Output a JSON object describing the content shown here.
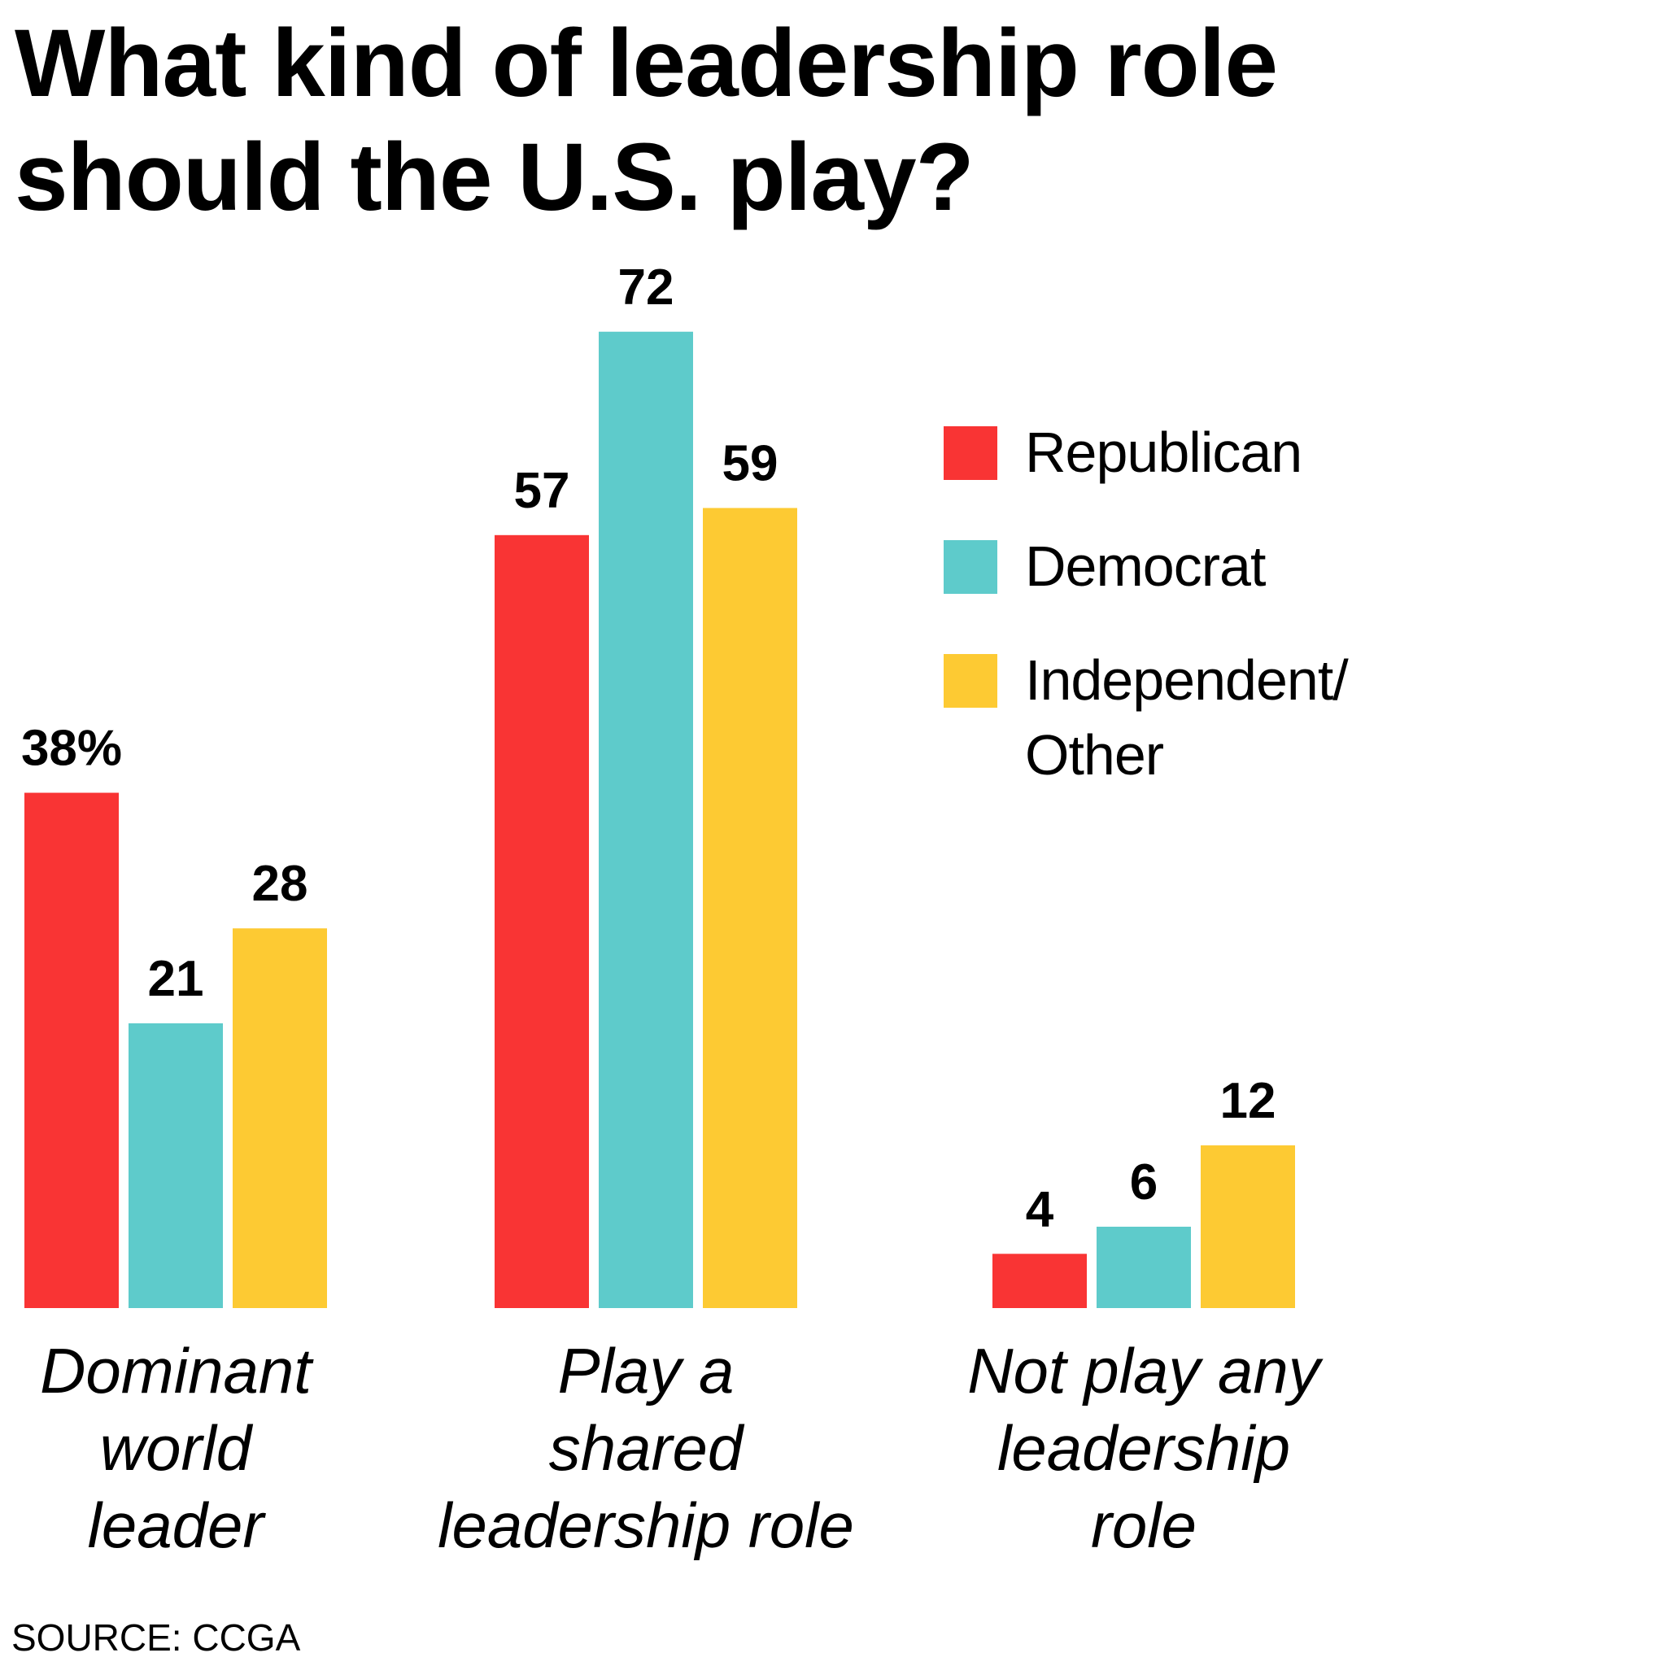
{
  "title_lines": [
    "What kind of leadership role",
    "should the U.S. play?"
  ],
  "legend": [
    {
      "label": "Republican",
      "color": "#f93434"
    },
    {
      "label": "Democrat",
      "color": "#5ecbcb"
    },
    {
      "label": "Independent/\nOther",
      "color": "#fdca33"
    }
  ],
  "source": "SOURCE: CCGA",
  "chart_data": {
    "type": "bar",
    "title": "What kind of leadership role should the U.S. play?",
    "categories": [
      [
        "Dominant",
        "world",
        "leader"
      ],
      [
        "Play a",
        "shared",
        "leadership role"
      ],
      [
        "Not play any",
        "leadership",
        "role"
      ]
    ],
    "series": [
      {
        "name": "Republican",
        "color": "#f93434",
        "values": [
          38,
          57,
          4
        ],
        "labels": [
          "38%",
          "57",
          "4"
        ]
      },
      {
        "name": "Democrat",
        "color": "#5ecbcb",
        "values": [
          21,
          72,
          6
        ],
        "labels": [
          "21",
          "72",
          "6"
        ]
      },
      {
        "name": "Independent/Other",
        "color": "#fdca33",
        "values": [
          28,
          59,
          12
        ],
        "labels": [
          "28",
          "59",
          "12"
        ]
      }
    ],
    "ylim": [
      0,
      72
    ],
    "grid": false,
    "legend_position": "right",
    "xlabel": "",
    "ylabel": ""
  }
}
